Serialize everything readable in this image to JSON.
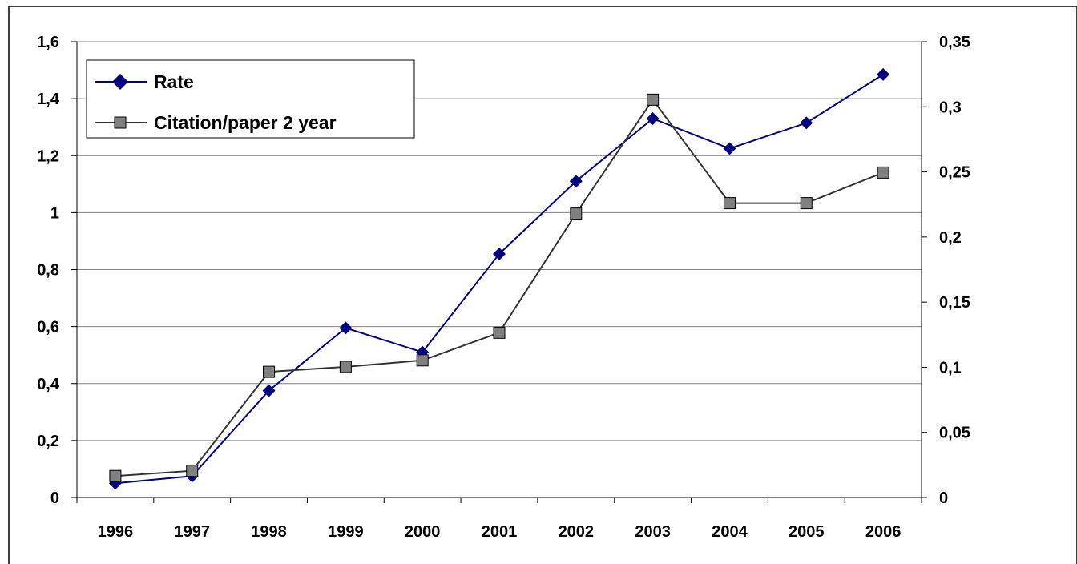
{
  "chart_data": {
    "type": "line",
    "categories": [
      "1996",
      "1997",
      "1998",
      "1999",
      "2000",
      "2001",
      "2002",
      "2003",
      "2004",
      "2005",
      "2006"
    ],
    "series": [
      {
        "name": "Rate",
        "axis": "left",
        "color": "#000080",
        "marker": "diamond",
        "values": [
          0.05,
          0.075,
          0.375,
          0.595,
          0.51,
          0.855,
          1.11,
          1.33,
          1.225,
          1.315,
          1.485
        ]
      },
      {
        "name": "Citation/paper 2 year",
        "axis": "right",
        "color": "#333333",
        "marker": "square",
        "marker_fill": "#808080",
        "values": [
          0.0165,
          0.0205,
          0.0965,
          0.1003,
          0.1053,
          0.1265,
          0.218,
          0.3055,
          0.226,
          0.226,
          0.2495
        ]
      }
    ],
    "y_left": {
      "ylim": [
        0,
        1.6
      ],
      "ticks": [
        "0",
        "0,2",
        "0,4",
        "0,6",
        "0,8",
        "1",
        "1,2",
        "1,4",
        "1,6"
      ]
    },
    "y_right": {
      "ylim": [
        0,
        0.35
      ],
      "ticks": [
        "0",
        "0,05",
        "0,1",
        "0,15",
        "0,2",
        "0,25",
        "0,3",
        "0,35"
      ]
    },
    "grid": true,
    "legend_position": "top-left"
  }
}
